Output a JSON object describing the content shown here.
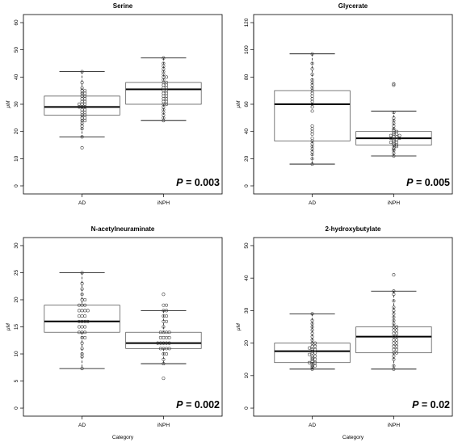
{
  "chart_data": [
    {
      "type": "box",
      "title": "Serine",
      "ylabel": "μM",
      "xlabel": "",
      "ylim": [
        0,
        60
      ],
      "yticks": [
        0,
        10,
        20,
        30,
        40,
        50,
        60
      ],
      "categories": [
        "AD",
        "iNPH"
      ],
      "boxes": [
        {
          "name": "AD",
          "whisker_low": 18,
          "q1": 26,
          "median": 29,
          "q3": 33,
          "whisker_high": 42,
          "points": [
            14,
            18,
            21,
            22,
            23,
            24,
            24,
            25,
            25,
            26,
            26,
            27,
            27,
            28,
            28,
            29,
            29,
            29,
            30,
            30,
            30,
            31,
            31,
            32,
            32,
            33,
            33,
            34,
            34,
            35,
            35,
            36,
            38,
            42
          ]
        },
        {
          "name": "iNPH",
          "whisker_low": 24,
          "q1": 30,
          "median": 35.5,
          "q3": 38,
          "whisker_high": 47,
          "points": [
            24,
            25,
            26,
            27,
            28,
            29,
            30,
            30,
            31,
            31,
            32,
            32,
            33,
            33,
            34,
            34,
            35,
            35,
            36,
            36,
            37,
            37,
            38,
            38,
            39,
            40,
            40,
            41,
            42,
            43,
            44,
            45,
            47
          ]
        }
      ],
      "annotation_italic": "P",
      "annotation_value": " = 0.003"
    },
    {
      "type": "box",
      "title": "Glycerate",
      "ylabel": "μM",
      "xlabel": "",
      "ylim": [
        0,
        120
      ],
      "yticks": [
        0,
        20,
        40,
        60,
        80,
        100,
        120
      ],
      "categories": [
        "AD",
        "iNPH"
      ],
      "boxes": [
        {
          "name": "AD",
          "whisker_low": 16,
          "q1": 33,
          "median": 60,
          "q3": 70,
          "whisker_high": 97,
          "points": [
            16,
            20,
            23,
            25,
            27,
            29,
            31,
            33,
            35,
            38,
            40,
            42,
            44,
            55,
            58,
            60,
            62,
            64,
            66,
            68,
            70,
            72,
            74,
            76,
            78,
            82,
            86,
            90,
            97
          ]
        },
        {
          "name": "iNPH",
          "whisker_low": 22,
          "q1": 30,
          "median": 35,
          "q3": 40,
          "whisker_high": 55,
          "points": [
            22,
            24,
            26,
            27,
            28,
            29,
            30,
            30,
            31,
            32,
            32,
            33,
            34,
            34,
            35,
            35,
            36,
            36,
            37,
            37,
            38,
            38,
            39,
            40,
            41,
            42,
            44,
            46,
            48,
            50,
            54,
            74,
            75
          ]
        }
      ],
      "annotation_italic": "P",
      "annotation_value": " = 0.005"
    },
    {
      "type": "box",
      "title": "N-acetylneuraminate",
      "ylabel": "μM",
      "xlabel": "Category",
      "ylim": [
        0,
        30
      ],
      "yticks": [
        0,
        5,
        10,
        15,
        20,
        25,
        30
      ],
      "categories": [
        "AD",
        "iNPH"
      ],
      "boxes": [
        {
          "name": "AD",
          "whisker_low": 7.3,
          "q1": 14,
          "median": 16,
          "q3": 19,
          "whisker_high": 25,
          "points": [
            7.3,
            9.5,
            10,
            11,
            12,
            13,
            13,
            14,
            14,
            14,
            15,
            15,
            15,
            16,
            16,
            16,
            16,
            17,
            17,
            17,
            18,
            18,
            18,
            18,
            19,
            19,
            19,
            20,
            20,
            21,
            22,
            23,
            25
          ]
        },
        {
          "name": "iNPH",
          "whisker_low": 8.2,
          "q1": 11,
          "median": 12,
          "q3": 14,
          "whisker_high": 18,
          "points": [
            5.5,
            8.2,
            9,
            10,
            10,
            11,
            11,
            11,
            11,
            12,
            12,
            12,
            12,
            12,
            13,
            13,
            13,
            13,
            14,
            14,
            14,
            14,
            15,
            16,
            16,
            17,
            17,
            18,
            18,
            19,
            19,
            21
          ]
        }
      ],
      "annotation_italic": "P",
      "annotation_value": " = 0.002"
    },
    {
      "type": "box",
      "title": "2-hydroxybutylate",
      "ylabel": "μM",
      "xlabel": "Category",
      "ylim": [
        0,
        50
      ],
      "yticks": [
        0,
        10,
        20,
        30,
        40,
        50
      ],
      "categories": [
        "AD",
        "iNPH"
      ],
      "boxes": [
        {
          "name": "AD",
          "whisker_low": 12,
          "q1": 14,
          "median": 17.5,
          "q3": 20,
          "whisker_high": 29,
          "points": [
            12,
            12.5,
            13,
            13,
            13.5,
            14,
            14,
            14.5,
            15,
            15,
            15.5,
            16,
            16,
            16.5,
            17,
            17,
            17.5,
            18,
            18,
            18.5,
            19,
            19,
            20,
            20,
            21,
            22,
            23,
            24,
            25,
            26,
            27,
            29
          ]
        },
        {
          "name": "iNPH",
          "whisker_low": 12,
          "q1": 17,
          "median": 22,
          "q3": 25,
          "whisker_high": 36,
          "points": [
            12,
            13,
            15,
            16,
            17,
            17,
            18,
            18,
            19,
            19,
            20,
            20,
            21,
            21,
            22,
            22,
            23,
            23,
            24,
            24,
            25,
            25,
            26,
            27,
            28,
            29,
            30,
            31,
            33,
            35,
            36,
            41
          ]
        }
      ],
      "annotation_italic": "P",
      "annotation_value": " = 0.02"
    }
  ]
}
